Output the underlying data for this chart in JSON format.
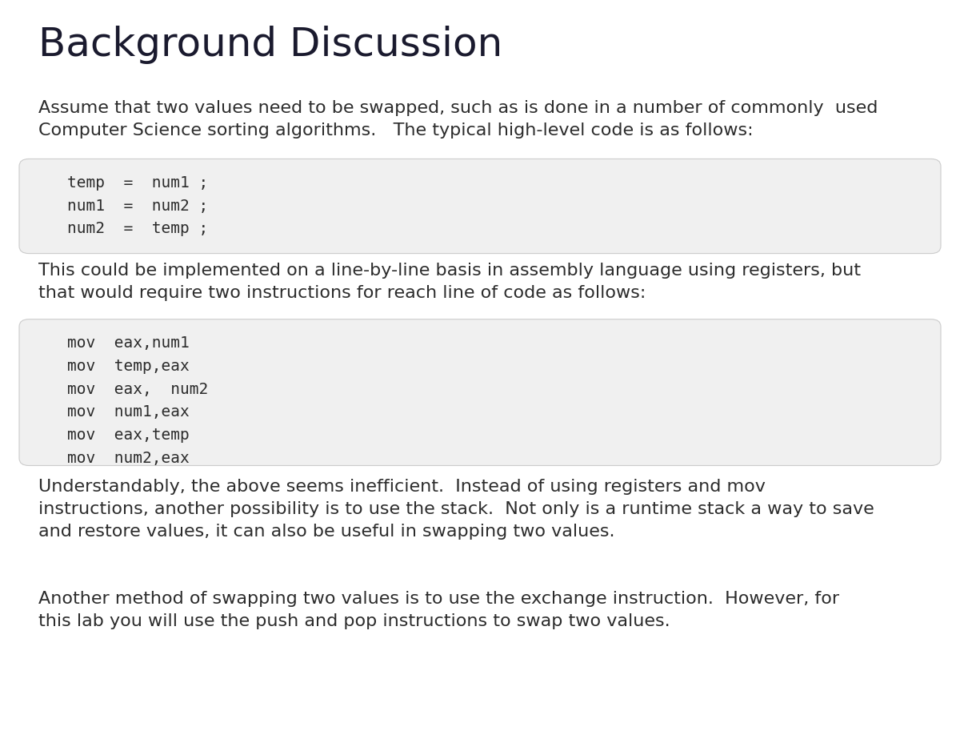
{
  "title": "Background Discussion",
  "bg_color": "#ffffff",
  "title_color": "#1a1a2e",
  "body_color": "#2c2c2c",
  "code_bg_color": "#f0f0f0",
  "code_text_color": "#2c2c2c",
  "para1": "Assume that two values need to be swapped, such as is done in a number of commonly  used\nComputer Science sorting algorithms.   The typical high-level code is as follows:",
  "code1": "temp  =  num1 ;\nnum1  =  num2 ;\nnum2  =  temp ;",
  "para2": "This could be implemented on a line-by-line basis in assembly language using registers, but\nthat would require two instructions for reach line of code as follows:",
  "code2": "mov  eax,num1\nmov  temp,eax\nmov  eax,  num2\nmov  num1,eax\nmov  eax,temp\nmov  num2,eax",
  "para3": "Understandably, the above seems inefficient.  Instead of using registers and mov\ninstructions, another possibility is to use the stack.  Not only is a runtime stack a way to save\nand restore values, it can also be useful in swapping two values.",
  "para4": "Another method of swapping two values is to use the exchange instruction.  However, for\nthis lab you will use the push and pop instructions to swap two values.",
  "title_fontsize": 36,
  "body_fontsize": 16,
  "code_fontsize": 14
}
